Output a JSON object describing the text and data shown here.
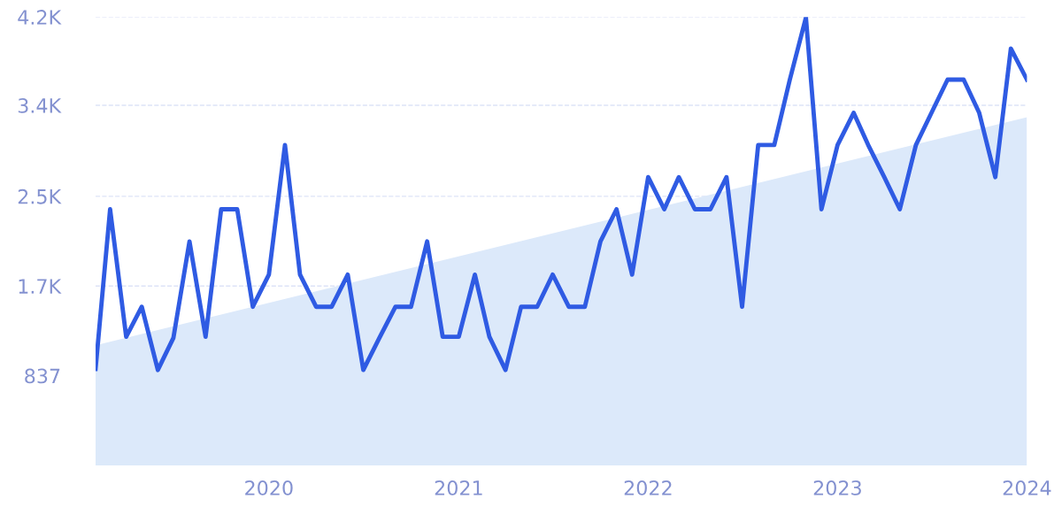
{
  "chart_data": {
    "type": "line",
    "x": [
      "2019-02",
      "2019-03",
      "2019-04",
      "2019-05",
      "2019-06",
      "2019-07",
      "2019-08",
      "2019-09",
      "2019-10",
      "2019-11",
      "2019-12",
      "2020-01",
      "2020-02",
      "2020-03",
      "2020-04",
      "2020-05",
      "2020-06",
      "2020-07",
      "2020-08",
      "2020-09",
      "2020-10",
      "2020-11",
      "2020-12",
      "2021-01",
      "2021-02",
      "2021-03",
      "2021-04",
      "2021-05",
      "2021-06",
      "2021-07",
      "2021-08",
      "2021-09",
      "2021-10",
      "2021-11",
      "2021-12",
      "2022-01",
      "2022-02",
      "2022-03",
      "2022-04",
      "2022-05",
      "2022-06",
      "2022-07",
      "2022-08",
      "2022-09",
      "2022-10",
      "2022-11",
      "2022-12",
      "2023-01",
      "2023-02",
      "2023-03",
      "2023-04",
      "2023-05",
      "2023-06",
      "2023-07",
      "2023-08",
      "2023-09",
      "2023-10",
      "2023-11",
      "2023-12",
      "2024-01"
    ],
    "series": [
      {
        "type": "area",
        "color": "#dce9fa",
        "x": [
          "2019-02",
          "2024-01"
        ],
        "values": [
          1120,
          3250
        ]
      },
      {
        "color": "#2f5be3",
        "values": [
          900,
          2390,
          1200,
          1480,
          890,
          1190,
          2090,
          1200,
          2390,
          2390,
          1480,
          1780,
          2990,
          1780,
          1480,
          1480,
          1780,
          890,
          1190,
          1480,
          1480,
          2090,
          1200,
          1200,
          1780,
          1200,
          890,
          1480,
          1480,
          1780,
          1480,
          1480,
          2090,
          2390,
          1780,
          2690,
          2390,
          2690,
          2390,
          2390,
          2690,
          1480,
          2990,
          2990,
          3600,
          4180,
          2390,
          2990,
          3290,
          2990,
          2690,
          2390,
          2990,
          3290,
          3600,
          3600,
          3290,
          2690,
          3890,
          3600
        ]
      }
    ],
    "xlim": [
      "2019-02",
      "2024-01"
    ],
    "xticks": [
      "2020",
      "2021",
      "2022",
      "2023",
      "2024"
    ],
    "ylim": [
      0,
      4185
    ],
    "yticks": [
      {
        "value": 837,
        "label": "837"
      },
      {
        "value": 1674,
        "label": "1.7K"
      },
      {
        "value": 2511,
        "label": "2.5K"
      },
      {
        "value": 3360,
        "label": "3.4K"
      },
      {
        "value": 4185,
        "label": "4.2K"
      }
    ],
    "grid": "y",
    "marker": "none",
    "line_style": "solid"
  }
}
